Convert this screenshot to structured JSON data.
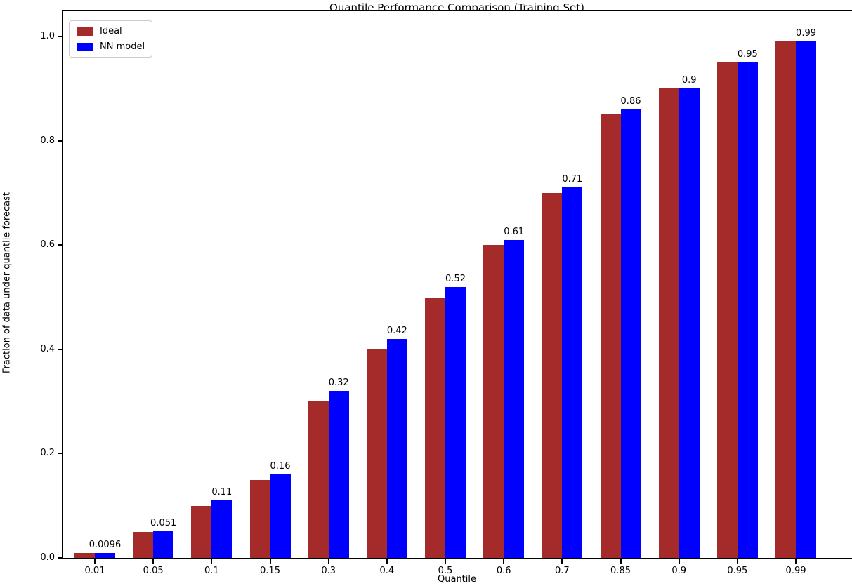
{
  "title": "Quantile Performance Comparison (Training Set)",
  "axes": {
    "xlabel": "Quantile",
    "ylabel": "Fraction of data under quantile forecast",
    "ytick_labels": [
      "0.0",
      "0.2",
      "0.4",
      "0.6",
      "0.8",
      "1.0"
    ]
  },
  "legend": {
    "items": [
      {
        "label": "Ideal",
        "color": "#a52a2a"
      },
      {
        "label": "NN model",
        "color": "#0000ff"
      }
    ]
  },
  "chart_data": {
    "type": "bar",
    "title": "Quantile Performance Comparison (Training Set)",
    "xlabel": "Quantile",
    "ylabel": "Fraction of data under quantile forecast",
    "categories": [
      "0.01",
      "0.05",
      "0.1",
      "0.15",
      "0.3",
      "0.4",
      "0.5",
      "0.6",
      "0.7",
      "0.85",
      "0.9",
      "0.95",
      "0.99"
    ],
    "series": [
      {
        "name": "Ideal",
        "color": "#a52a2a",
        "values": [
          0.01,
          0.05,
          0.1,
          0.15,
          0.3,
          0.4,
          0.5,
          0.6,
          0.7,
          0.85,
          0.9,
          0.95,
          0.99
        ]
      },
      {
        "name": "NN model",
        "color": "#0000ff",
        "values": [
          0.0096,
          0.051,
          0.11,
          0.16,
          0.32,
          0.42,
          0.52,
          0.61,
          0.71,
          0.86,
          0.9,
          0.95,
          0.99
        ],
        "labels": [
          "0.0096",
          "0.051",
          "0.11",
          "0.16",
          "0.32",
          "0.42",
          "0.52",
          "0.61",
          "0.71",
          "0.86",
          "0.9",
          "0.95",
          "0.99"
        ]
      }
    ],
    "yticks": [
      0.0,
      0.2,
      0.4,
      0.6,
      0.8,
      1.0
    ],
    "ylim": [
      0,
      1.048
    ],
    "grid": false,
    "legend_position": "upper left",
    "bar_labels_on": "NN model"
  }
}
